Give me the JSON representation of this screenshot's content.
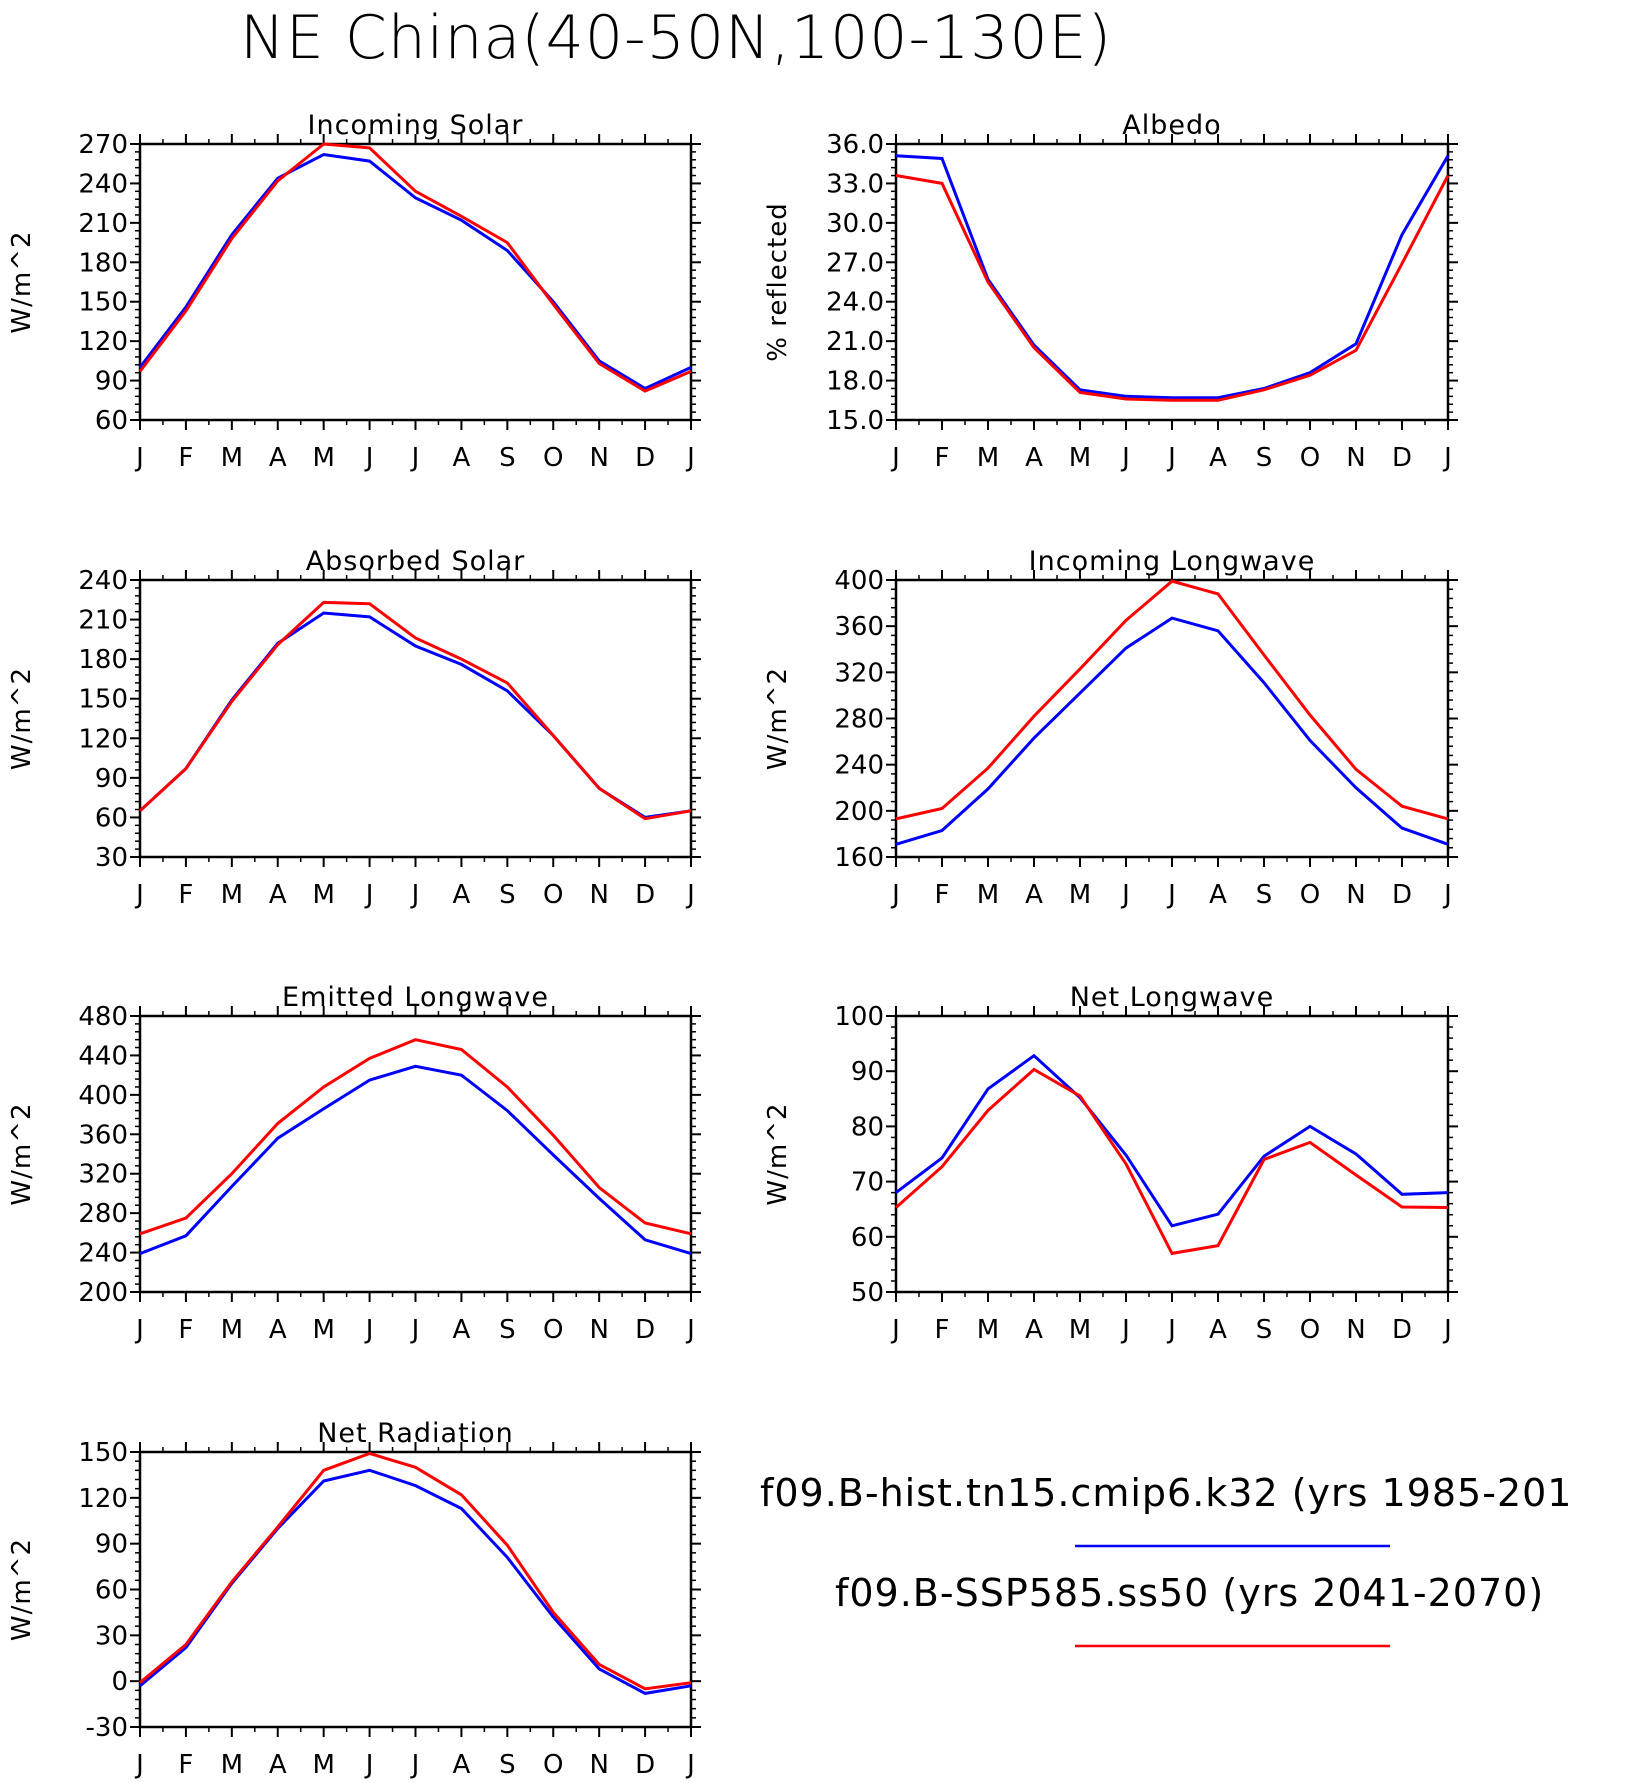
{
  "title": "NE China(40-50N,100-130E)",
  "legend": [
    {
      "text": "f09.B-hist.tn15.cmip6.k32 (yrs 1985-201",
      "color": "#0000ff"
    },
    {
      "text": "f09.B-SSP585.ss50 (yrs 2041-2070)",
      "color": "#ff0000"
    }
  ],
  "chart_data": [
    {
      "type": "line",
      "title": "Incoming Solar",
      "ylabel": "W/m^2",
      "categories": [
        "J",
        "F",
        "M",
        "A",
        "M",
        "J",
        "J",
        "A",
        "S",
        "O",
        "N",
        "D",
        "J"
      ],
      "ylim": [
        60,
        270
      ],
      "yticks": [
        60,
        90,
        120,
        150,
        180,
        210,
        240,
        270
      ],
      "yformat": 0,
      "grid": false,
      "series": [
        {
          "color": "#0000ff",
          "values": [
            100,
            146,
            201,
            244,
            262,
            257,
            229,
            212,
            189,
            150,
            105,
            84,
            100
          ]
        },
        {
          "color": "#ff0000",
          "values": [
            97,
            143,
            198,
            242,
            270,
            267,
            234,
            215,
            195,
            148,
            103,
            82,
            97
          ]
        }
      ]
    },
    {
      "type": "line",
      "title": "Albedo",
      "ylabel": "% reflected",
      "categories": [
        "J",
        "F",
        "M",
        "A",
        "M",
        "J",
        "J",
        "A",
        "S",
        "O",
        "N",
        "D",
        "J"
      ],
      "ylim": [
        15,
        36
      ],
      "yticks": [
        15.0,
        18.0,
        21.0,
        24.0,
        27.0,
        30.0,
        33.0,
        36.0
      ],
      "yformat": 1,
      "grid": false,
      "series": [
        {
          "color": "#0000ff",
          "values": [
            35.1,
            34.9,
            25.7,
            20.7,
            17.3,
            16.8,
            16.7,
            16.7,
            17.4,
            18.6,
            20.8,
            29.1,
            35.1
          ]
        },
        {
          "color": "#ff0000",
          "values": [
            33.6,
            33.0,
            25.5,
            20.5,
            17.1,
            16.6,
            16.5,
            16.5,
            17.3,
            18.4,
            20.3,
            26.9,
            33.6
          ]
        }
      ]
    },
    {
      "type": "line",
      "title": "Absorbed Solar",
      "ylabel": "W/m^2",
      "categories": [
        "J",
        "F",
        "M",
        "A",
        "M",
        "J",
        "J",
        "A",
        "S",
        "O",
        "N",
        "D",
        "J"
      ],
      "ylim": [
        30,
        240
      ],
      "yticks": [
        30,
        60,
        90,
        120,
        150,
        180,
        210,
        240
      ],
      "yformat": 0,
      "grid": false,
      "series": [
        {
          "color": "#0000ff",
          "values": [
            65,
            97,
            149,
            192,
            215,
            212,
            190,
            176,
            156,
            122,
            82,
            60,
            65
          ]
        },
        {
          "color": "#ff0000",
          "values": [
            65,
            97,
            148,
            191,
            223,
            222,
            196,
            180,
            162,
            122,
            82,
            59,
            65
          ]
        }
      ]
    },
    {
      "type": "line",
      "title": "Incoming Longwave",
      "ylabel": "W/m^2",
      "categories": [
        "J",
        "F",
        "M",
        "A",
        "M",
        "J",
        "J",
        "A",
        "S",
        "O",
        "N",
        "D",
        "J"
      ],
      "ylim": [
        160,
        400
      ],
      "yticks": [
        160,
        200,
        240,
        280,
        320,
        360,
        400
      ],
      "yformat": 0,
      "grid": false,
      "series": [
        {
          "color": "#0000ff",
          "values": [
            171,
            183,
            219,
            263,
            302,
            341,
            367,
            356,
            311,
            261,
            220,
            185,
            171
          ]
        },
        {
          "color": "#ff0000",
          "values": [
            193,
            202,
            237,
            282,
            323,
            365,
            399,
            388,
            335,
            283,
            236,
            204,
            193
          ]
        }
      ]
    },
    {
      "type": "line",
      "title": "Emitted Longwave",
      "ylabel": "W/m^2",
      "categories": [
        "J",
        "F",
        "M",
        "A",
        "M",
        "J",
        "J",
        "A",
        "S",
        "O",
        "N",
        "D",
        "J"
      ],
      "ylim": [
        200,
        480
      ],
      "yticks": [
        200,
        240,
        280,
        320,
        360,
        400,
        440,
        480
      ],
      "yformat": 0,
      "grid": false,
      "series": [
        {
          "color": "#0000ff",
          "values": [
            239,
            257,
            307,
            356,
            386,
            415,
            429,
            420,
            384,
            339,
            295,
            253,
            239
          ]
        },
        {
          "color": "#ff0000",
          "values": [
            259,
            275,
            320,
            371,
            408,
            437,
            456,
            446,
            408,
            359,
            306,
            270,
            259
          ]
        }
      ]
    },
    {
      "type": "line",
      "title": "Net Longwave",
      "ylabel": "W/m^2",
      "categories": [
        "J",
        "F",
        "M",
        "A",
        "M",
        "J",
        "J",
        "A",
        "S",
        "O",
        "N",
        "D",
        "J"
      ],
      "ylim": [
        50,
        100
      ],
      "yticks": [
        50,
        60,
        70,
        80,
        90,
        100
      ],
      "yformat": 0,
      "grid": false,
      "series": [
        {
          "color": "#0000ff",
          "values": [
            68,
            74.3,
            86.8,
            92.8,
            85.2,
            74.8,
            62,
            64.1,
            74.6,
            80,
            75,
            67.7,
            68
          ]
        },
        {
          "color": "#ff0000",
          "values": [
            65.3,
            72.7,
            82.9,
            90.3,
            85.5,
            73.2,
            57,
            58.4,
            74,
            77.1,
            71.2,
            65.4,
            65.3
          ]
        }
      ]
    },
    {
      "type": "line",
      "title": "Net Radiation",
      "ylabel": "W/m^2",
      "categories": [
        "J",
        "F",
        "M",
        "A",
        "M",
        "J",
        "J",
        "A",
        "S",
        "O",
        "N",
        "D",
        "J"
      ],
      "ylim": [
        -30,
        150
      ],
      "yticks": [
        -30,
        0,
        30,
        60,
        90,
        120,
        150
      ],
      "yformat": 0,
      "grid": false,
      "series": [
        {
          "color": "#0000ff",
          "values": [
            -3,
            22,
            64,
            100,
            131,
            138,
            128,
            113,
            81,
            42,
            8,
            -8,
            -3
          ]
        },
        {
          "color": "#ff0000",
          "values": [
            -1,
            24,
            65,
            101,
            138,
            149,
            140,
            122,
            89,
            45,
            11,
            -5,
            -1
          ]
        }
      ]
    }
  ]
}
